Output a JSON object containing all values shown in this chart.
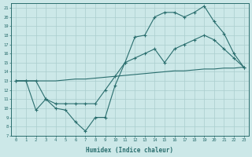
{
  "bg_color": "#cce8e8",
  "line_color": "#2a6e6e",
  "grid_color": "#aacece",
  "xlabel": "Humidex (Indice chaleur)",
  "ylim": [
    7,
    21.5
  ],
  "xlim": [
    -0.5,
    23.5
  ],
  "yticks": [
    7,
    8,
    9,
    10,
    11,
    12,
    13,
    14,
    15,
    16,
    17,
    18,
    19,
    20,
    21
  ],
  "xticks": [
    0,
    1,
    2,
    3,
    4,
    5,
    6,
    7,
    8,
    9,
    10,
    11,
    12,
    13,
    14,
    15,
    16,
    17,
    18,
    19,
    20,
    21,
    22,
    23
  ],
  "line1_x": [
    0,
    1,
    2,
    3,
    4,
    5,
    6,
    7,
    8,
    9,
    10,
    11,
    12,
    13,
    14,
    15,
    16,
    17,
    18,
    19,
    20,
    21,
    22,
    23
  ],
  "line1_y": [
    13.0,
    13.0,
    13.0,
    13.0,
    13.0,
    13.1,
    13.2,
    13.2,
    13.3,
    13.4,
    13.5,
    13.6,
    13.7,
    13.8,
    13.9,
    14.0,
    14.1,
    14.1,
    14.2,
    14.3,
    14.3,
    14.4,
    14.4,
    14.5
  ],
  "line2_x": [
    0,
    1,
    2,
    3,
    4,
    5,
    6,
    7,
    8,
    9,
    10,
    11,
    12,
    13,
    14,
    15,
    16,
    17,
    18,
    19,
    20,
    21,
    22,
    23
  ],
  "line2_y": [
    13.0,
    13.0,
    13.0,
    11.0,
    10.5,
    10.5,
    10.5,
    10.5,
    10.5,
    12.0,
    13.5,
    15.0,
    15.5,
    16.0,
    16.5,
    15.0,
    16.5,
    17.0,
    17.5,
    18.0,
    17.5,
    16.5,
    15.5,
    14.5
  ],
  "line3_x": [
    0,
    1,
    2,
    3,
    4,
    5,
    6,
    7,
    8,
    9,
    10,
    11,
    12,
    13,
    14,
    15,
    16,
    17,
    18,
    19,
    20,
    21,
    22,
    23
  ],
  "line3_y": [
    13.0,
    13.0,
    9.8,
    11.0,
    10.0,
    9.8,
    8.5,
    7.5,
    9.0,
    9.0,
    12.5,
    15.0,
    17.8,
    18.0,
    20.0,
    20.5,
    20.5,
    20.0,
    20.5,
    21.2,
    19.5,
    18.2,
    16.0,
    14.5
  ],
  "line2_markers_x": [
    0,
    1,
    2,
    3,
    4,
    9,
    10,
    11,
    12,
    13,
    14,
    15,
    16,
    17,
    18,
    19,
    20,
    21,
    22,
    23
  ],
  "line3_markers_x": [
    1,
    2,
    3,
    4,
    5,
    6,
    7,
    8,
    9,
    10,
    11,
    12,
    13,
    14,
    15,
    16,
    17,
    18,
    19,
    20,
    21,
    22,
    23
  ]
}
